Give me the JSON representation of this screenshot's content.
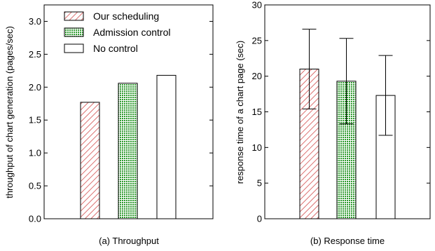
{
  "colors": {
    "hatch_red": "#cc3333",
    "dot_green": "#2e9a2e",
    "frame": "#000000",
    "background": "#ffffff"
  },
  "chart_data": [
    {
      "type": "bar",
      "title": "(a) Throughput",
      "xlabel": "",
      "ylabel": "throughput of chart generation (pages/sec)",
      "ylim": [
        0,
        3.25
      ],
      "yticks": [
        0.0,
        0.5,
        1.0,
        1.5,
        2.0,
        2.5,
        3.0
      ],
      "ytick_labels": [
        "0.0",
        "0.5",
        "1.0",
        "1.5",
        "2.0",
        "2.5",
        "3.0"
      ],
      "categories": [
        "Our scheduling",
        "Admission control",
        "No control"
      ],
      "values": [
        1.77,
        2.06,
        2.18
      ],
      "legend": {
        "position": "top-left",
        "entries": [
          "Our scheduling",
          "Admission control",
          "No control"
        ]
      }
    },
    {
      "type": "bar",
      "title": "(b) Response time",
      "xlabel": "",
      "ylabel": "response time of a chart page (sec)",
      "ylim": [
        0,
        30
      ],
      "yticks": [
        0,
        5,
        10,
        15,
        20,
        25,
        30
      ],
      "ytick_labels": [
        "0",
        "5",
        "10",
        "15",
        "20",
        "25",
        "30"
      ],
      "categories": [
        "Our scheduling",
        "Admission control",
        "No control"
      ],
      "values": [
        21.0,
        19.3,
        17.3
      ],
      "error_low": [
        15.4,
        13.3,
        11.7
      ],
      "error_high": [
        26.6,
        25.3,
        22.9
      ]
    }
  ]
}
